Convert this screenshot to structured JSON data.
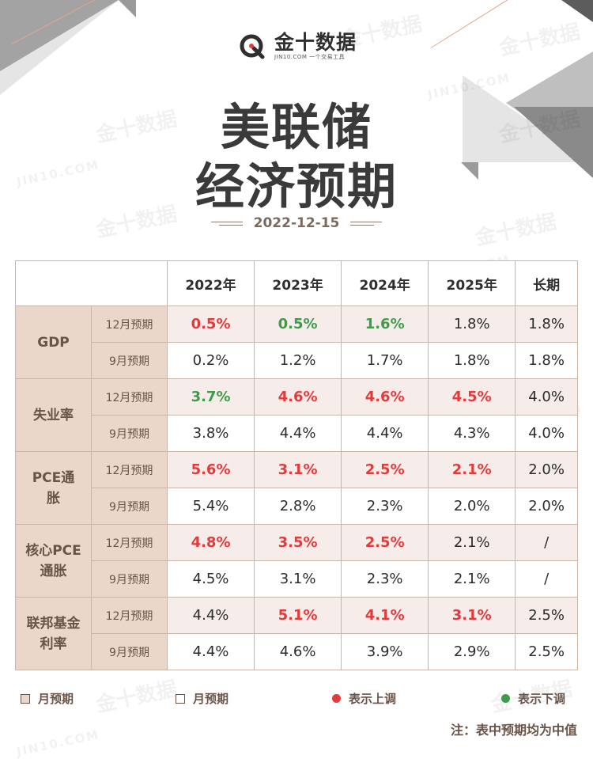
{
  "brand": {
    "name": "金十数据",
    "tagline": "JIN10.COM 一个交易工具",
    "watermark_text": "金十数据",
    "watermark_url": "JIN10.COM"
  },
  "title": {
    "line1": "美联储",
    "line2": "经济预期"
  },
  "date": "2022-12-15",
  "table": {
    "columns": [
      "2022年",
      "2023年",
      "2024年",
      "2025年",
      "长期"
    ],
    "groups": [
      {
        "label": "GDP",
        "rows": [
          {
            "sub": "12月预期",
            "cells": [
              {
                "v": "0.5%",
                "s": "red"
              },
              {
                "v": "0.5%",
                "s": "green"
              },
              {
                "v": "1.6%",
                "s": "green"
              },
              {
                "v": "1.8%",
                "s": "plain"
              },
              {
                "v": "1.8%",
                "s": "plain"
              }
            ]
          },
          {
            "sub": "9月预期",
            "cells": [
              {
                "v": "0.2%",
                "s": "plain"
              },
              {
                "v": "1.2%",
                "s": "plain"
              },
              {
                "v": "1.7%",
                "s": "plain"
              },
              {
                "v": "1.8%",
                "s": "plain"
              },
              {
                "v": "1.8%",
                "s": "plain"
              }
            ]
          }
        ]
      },
      {
        "label": "失业率",
        "rows": [
          {
            "sub": "12月预期",
            "cells": [
              {
                "v": "3.7%",
                "s": "green"
              },
              {
                "v": "4.6%",
                "s": "red"
              },
              {
                "v": "4.6%",
                "s": "red"
              },
              {
                "v": "4.5%",
                "s": "red"
              },
              {
                "v": "4.0%",
                "s": "plain"
              }
            ]
          },
          {
            "sub": "9月预期",
            "cells": [
              {
                "v": "3.8%",
                "s": "plain"
              },
              {
                "v": "4.4%",
                "s": "plain"
              },
              {
                "v": "4.4%",
                "s": "plain"
              },
              {
                "v": "4.3%",
                "s": "plain"
              },
              {
                "v": "4.0%",
                "s": "plain"
              }
            ]
          }
        ]
      },
      {
        "label": "PCE通胀",
        "rows": [
          {
            "sub": "12月预期",
            "cells": [
              {
                "v": "5.6%",
                "s": "red"
              },
              {
                "v": "3.1%",
                "s": "red"
              },
              {
                "v": "2.5%",
                "s": "red"
              },
              {
                "v": "2.1%",
                "s": "red"
              },
              {
                "v": "2.0%",
                "s": "plain"
              }
            ]
          },
          {
            "sub": "9月预期",
            "cells": [
              {
                "v": "5.4%",
                "s": "plain"
              },
              {
                "v": "2.8%",
                "s": "plain"
              },
              {
                "v": "2.3%",
                "s": "plain"
              },
              {
                "v": "2.0%",
                "s": "plain"
              },
              {
                "v": "2.0%",
                "s": "plain"
              }
            ]
          }
        ]
      },
      {
        "label": "核心PCE通胀",
        "rows": [
          {
            "sub": "12月预期",
            "cells": [
              {
                "v": "4.8%",
                "s": "red"
              },
              {
                "v": "3.5%",
                "s": "red"
              },
              {
                "v": "2.5%",
                "s": "red"
              },
              {
                "v": "2.1%",
                "s": "plain"
              },
              {
                "v": "/",
                "s": "plain"
              }
            ]
          },
          {
            "sub": "9月预期",
            "cells": [
              {
                "v": "4.5%",
                "s": "plain"
              },
              {
                "v": "3.1%",
                "s": "plain"
              },
              {
                "v": "2.3%",
                "s": "plain"
              },
              {
                "v": "2.1%",
                "s": "plain"
              },
              {
                "v": "/",
                "s": "plain"
              }
            ]
          }
        ]
      },
      {
        "label": "联邦基金利率",
        "rows": [
          {
            "sub": "12月预期",
            "cells": [
              {
                "v": "4.4%",
                "s": "plain"
              },
              {
                "v": "5.1%",
                "s": "red"
              },
              {
                "v": "4.1%",
                "s": "red"
              },
              {
                "v": "3.1%",
                "s": "red"
              },
              {
                "v": "2.5%",
                "s": "plain"
              }
            ]
          },
          {
            "sub": "9月预期",
            "cells": [
              {
                "v": "4.4%",
                "s": "plain"
              },
              {
                "v": "4.6%",
                "s": "plain"
              },
              {
                "v": "3.9%",
                "s": "plain"
              },
              {
                "v": "2.9%",
                "s": "plain"
              },
              {
                "v": "2.5%",
                "s": "plain"
              }
            ]
          }
        ]
      }
    ]
  },
  "legend": {
    "item1": "月预期",
    "item2": "月预期",
    "item3": "表示上调",
    "item4": "表示下调"
  },
  "note": "注：表中预期均为中值",
  "colors": {
    "up": "#e23b3b",
    "down": "#3f9a4a",
    "header_bg": "#ead7c9",
    "row_tint": "#f6ecea"
  }
}
